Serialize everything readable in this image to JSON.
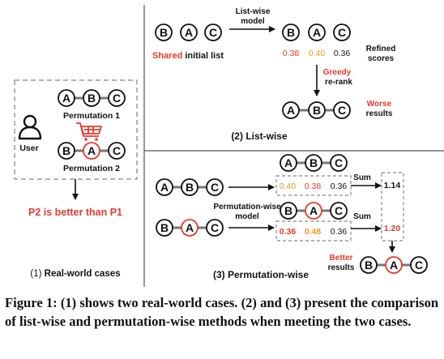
{
  "nodes": {
    "a": "A",
    "b": "B",
    "c": "C"
  },
  "real_world": {
    "user_label": "User",
    "permutation1_label": "Permutation 1",
    "permutation2_label": "Permutation 2",
    "conclusion": "P2 is better than P1",
    "section_label_num": "(1)",
    "section_label_text": " Real-world cases"
  },
  "list_wise": {
    "model_label_line1": "List-wise",
    "model_label_line2": "model",
    "initial_list_shared": "Shared",
    "initial_list_rest": " initial list",
    "scores": [
      "0.38",
      "0.40",
      "0.36"
    ],
    "refined_line1": "Refined",
    "refined_line2": "scores",
    "rerank_line1": "Greedy",
    "rerank_line2": "re-rank",
    "worse_line1": "Worse",
    "worse_line2": "results",
    "section_label": "(2) List-wise"
  },
  "permutation_wise": {
    "model_label_line1": "Permutation-wise",
    "model_label_line2": "model",
    "scores_p1": [
      "0.40",
      "0.38",
      "0.36"
    ],
    "scores_p2": [
      "0.36",
      "0.48",
      "0.36"
    ],
    "sum_label_1": "Sum",
    "sum_label_2": "Sum",
    "sum_p1": "1.14",
    "sum_p2": "1.20",
    "better_line1": "Better",
    "better_line2": "results",
    "section_label": "(3) Permutation-wise"
  },
  "caption": "Figure 1: (1) shows two real-world cases. (2) and (3) present the comparison of list-wise and permutation-wise methods when meeting the two cases.",
  "colors": {
    "red": "#e53b2f",
    "orange": "#f19a1c",
    "ink": "#111111",
    "dash": "#888888",
    "gray_link": "#777777"
  },
  "icons": [
    "user-icon",
    "shopping-cart-icon"
  ]
}
